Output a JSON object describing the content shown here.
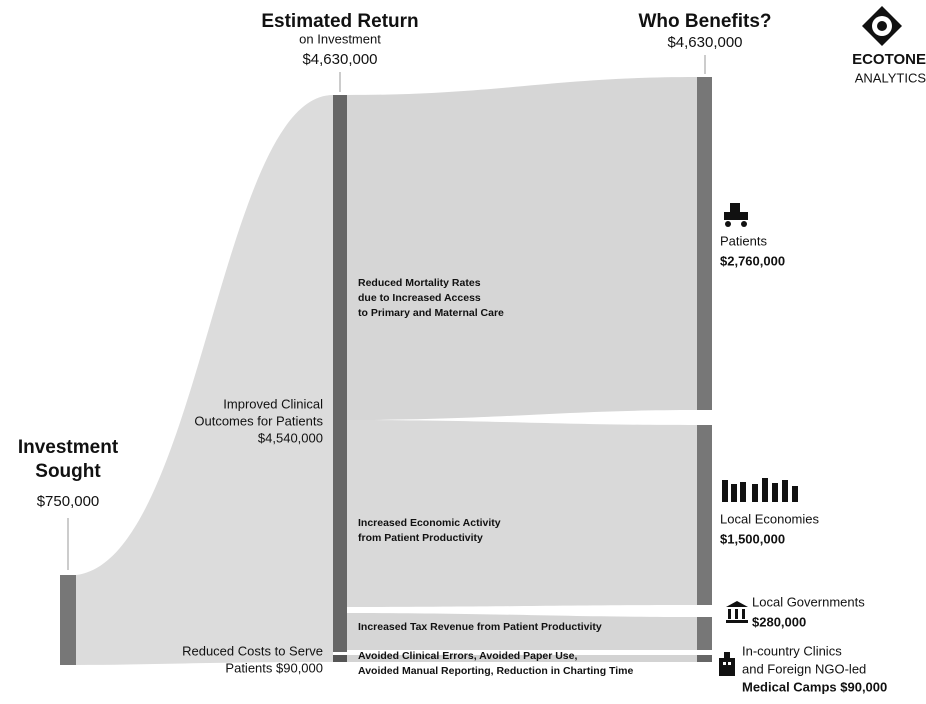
{
  "estimated_return": {
    "title": "Estimated Return",
    "subtitle": "on Investment",
    "value": "$4,630,000"
  },
  "who_benefits": {
    "title": "Who Benefits?",
    "value": "$4,630,000"
  },
  "logo": {
    "name": "ECOTONE",
    "tagline": "ANALYTICS"
  },
  "investment": {
    "title_lines": [
      "Investment",
      "Sought"
    ],
    "value": "$750,000"
  },
  "returns": [
    {
      "lines": [
        "Improved Clinical",
        "Outcomes for Patients",
        "$4,540,000"
      ]
    },
    {
      "lines": [
        "Reduced Costs to Serve",
        "Patients $90,000"
      ]
    }
  ],
  "flows": [
    {
      "lines": [
        "Reduced Mortality Rates",
        "due to Increased Access",
        "to Primary and Maternal Care"
      ]
    },
    {
      "lines": [
        "Increased Economic Activity",
        "from Patient Productivity"
      ]
    },
    {
      "lines": [
        "Increased Tax Revenue from Patient Productivity"
      ]
    },
    {
      "lines": [
        "Avoided Clinical Errors, Avoided Paper Use,",
        "Avoided Manual Reporting, Reduction in Charting Time"
      ]
    }
  ],
  "beneficiaries": [
    {
      "lines": [
        "Patients",
        "$2,760,000"
      ]
    },
    {
      "lines": [
        "Local Economies",
        "$1,500,000"
      ]
    },
    {
      "lines": [
        "Local Governments",
        "$280,000"
      ]
    },
    {
      "lines": [
        "In-country Clinics",
        "and Foreign NGO-led",
        "Medical Camps $90,000"
      ]
    }
  ]
}
